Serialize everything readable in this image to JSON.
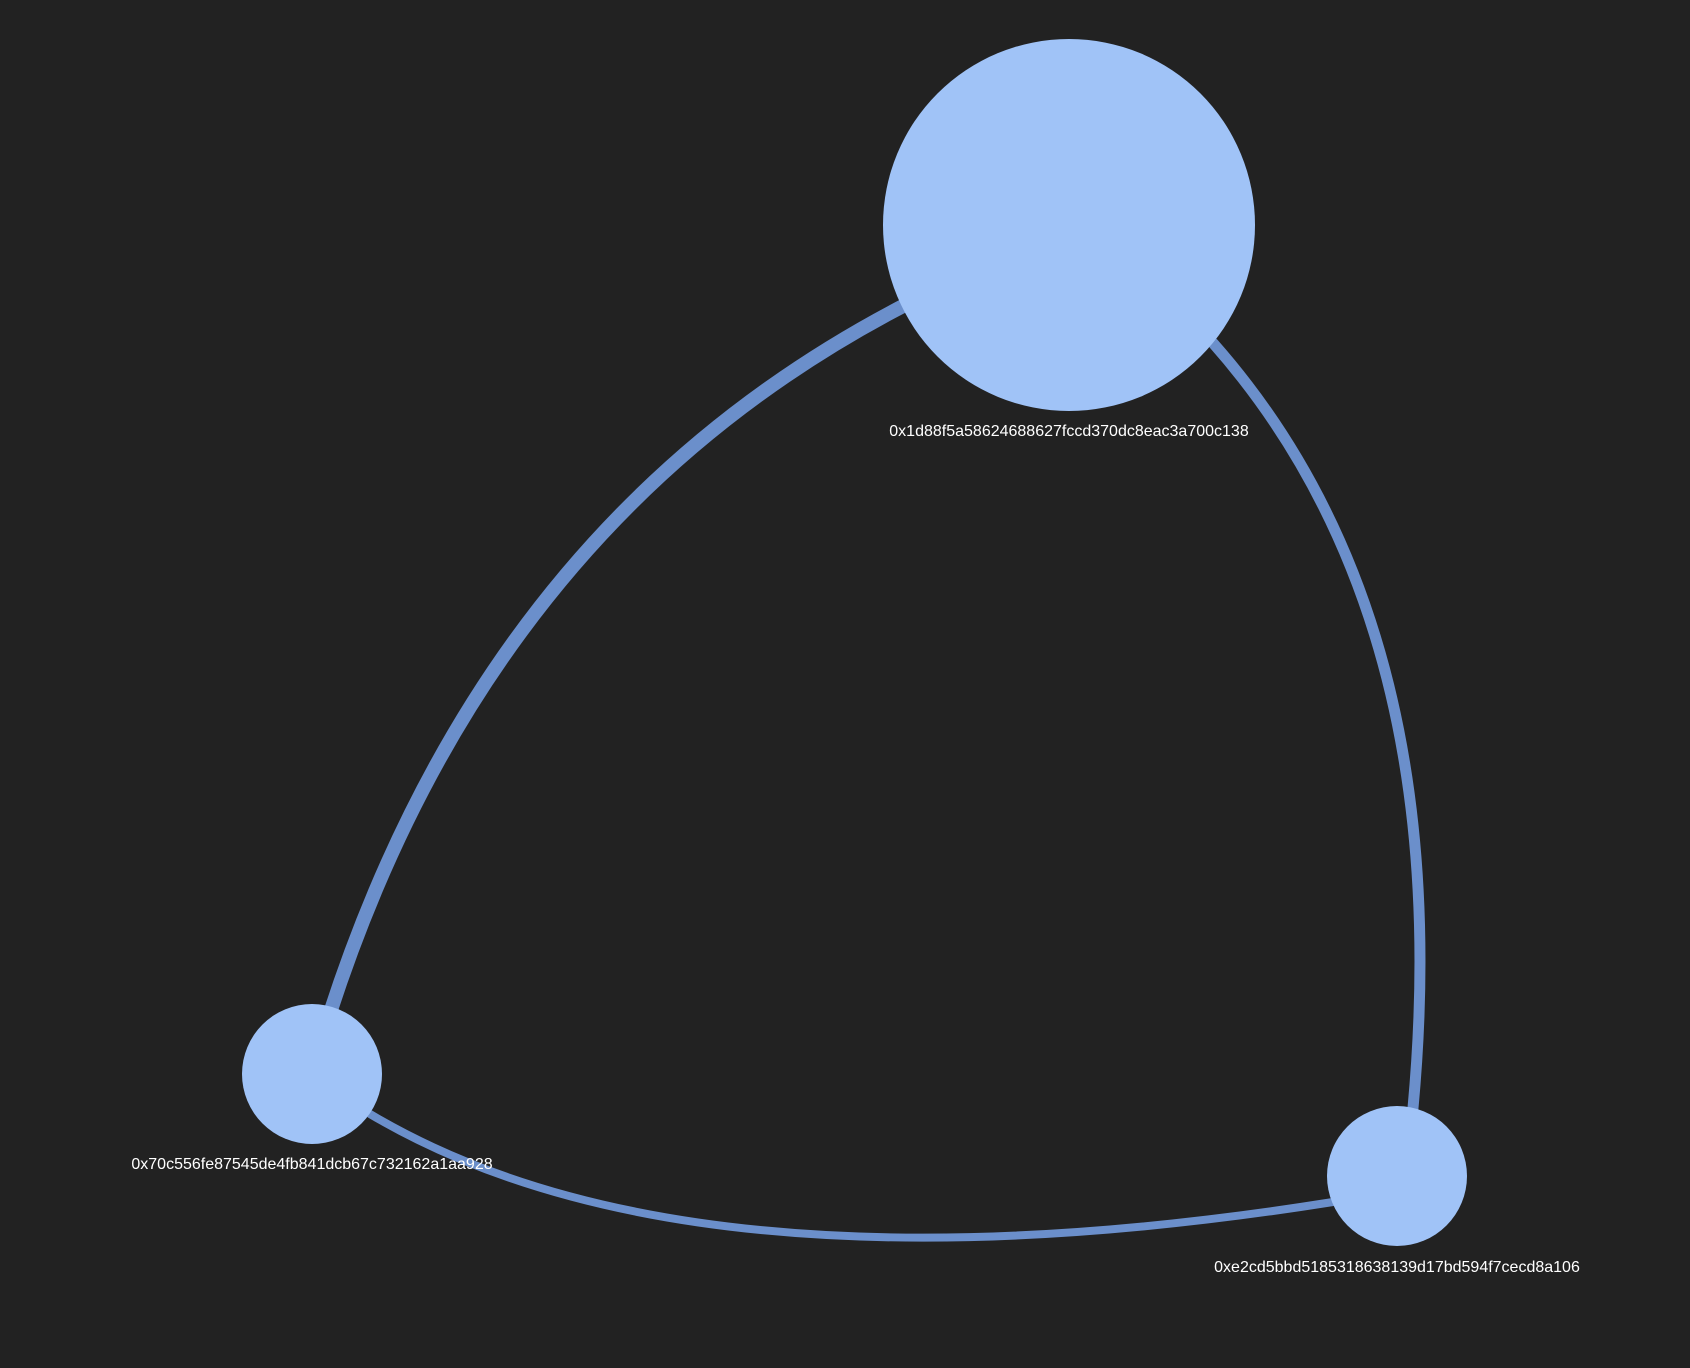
{
  "graph": {
    "background_color": "#222222",
    "node_color": "#a0c3f7",
    "edge_color": "#6b8fcb",
    "nodes": [
      {
        "id": "node-1d88",
        "label": "0x1d88f5a58624688627fccd370dc8eac3a700c138"
      },
      {
        "id": "node-70c5",
        "label": "0x70c556fe87545de4fb841dcb67c732162a1aa928"
      },
      {
        "id": "node-e2cd",
        "label": "0xe2cd5bbd5185318638139d17bd594f7cecd8a106"
      }
    ],
    "edges": [
      {
        "source": "node-1d88",
        "target": "node-70c5"
      },
      {
        "source": "node-1d88",
        "target": "node-e2cd"
      },
      {
        "source": "node-70c5",
        "target": "node-e2cd"
      }
    ]
  }
}
